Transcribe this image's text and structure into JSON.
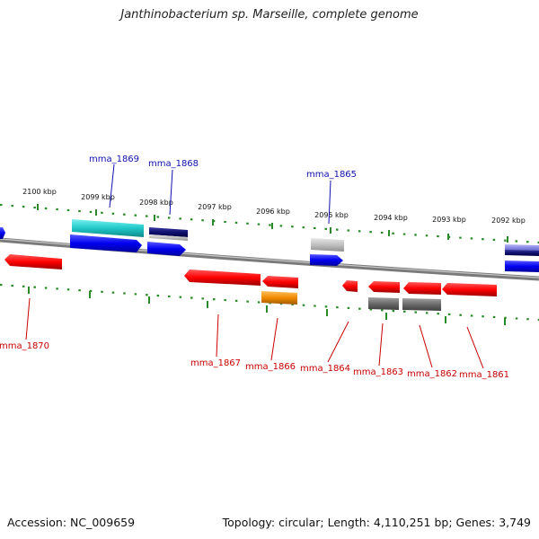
{
  "title": "Janthinobacterium sp. Marseille, complete genome",
  "footer": {
    "accession": "Accession: NC_009659",
    "summary": "Topology: circular; Length: 4,110,251 bp; Genes: 3,749"
  },
  "colors": {
    "backbone": "#8a8a8a",
    "tick": "#2a8a2a",
    "label_blue": "#1010b0",
    "label_red": "#c80000"
  },
  "ticks": [
    {
      "label": "2100 kbp"
    },
    {
      "label": "2099 kbp"
    },
    {
      "label": "2098 kbp"
    },
    {
      "label": "2097 kbp"
    },
    {
      "label": "2096 kbp"
    },
    {
      "label": "2095 kbp"
    },
    {
      "label": "2094 kbp"
    },
    {
      "label": "2093 kbp"
    },
    {
      "label": "2092 kbp"
    }
  ],
  "genes": [
    {
      "id": "mma_1869",
      "color": "#1010b0"
    },
    {
      "id": "mma_1868",
      "color": "#1010b0"
    },
    {
      "id": "mma_1865",
      "color": "#1010b0"
    },
    {
      "id": "mma_1870",
      "color": "#c80000"
    },
    {
      "id": "mma_1867",
      "color": "#c80000"
    },
    {
      "id": "mma_1866",
      "color": "#c80000"
    },
    {
      "id": "mma_1864",
      "color": "#c80000"
    },
    {
      "id": "mma_1863",
      "color": "#c80000"
    },
    {
      "id": "mma_1862",
      "color": "#c80000"
    },
    {
      "id": "mma_1861",
      "color": "#c80000"
    }
  ]
}
